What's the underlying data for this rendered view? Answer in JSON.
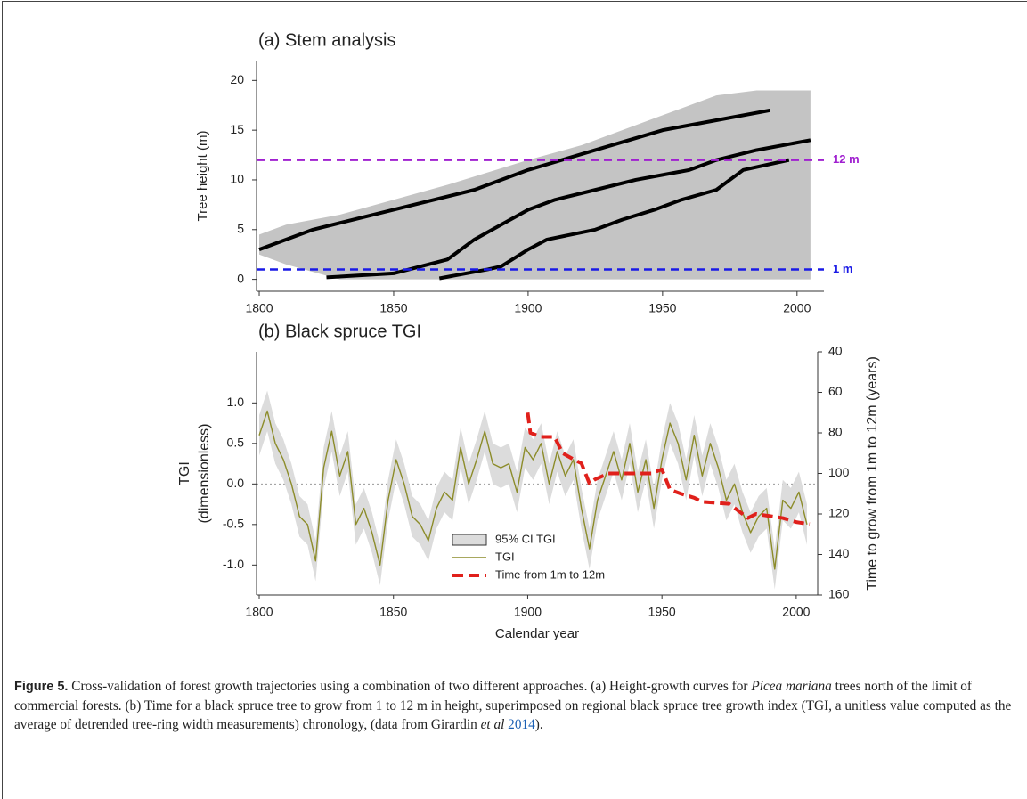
{
  "chart_data": [
    {
      "type": "line",
      "title": "(a) Stem analysis",
      "ylabel": "Tree height (m)",
      "xlim": [
        1799,
        2010
      ],
      "ylim": [
        -1.2,
        22
      ],
      "xticks": [
        1800,
        1850,
        1900,
        1950,
        2000
      ],
      "yticks": [
        0,
        5,
        10,
        15,
        20
      ],
      "band": {
        "color": "#c4c4c4",
        "x": [
          1800,
          1810,
          1830,
          1850,
          1870,
          1900,
          1920,
          1935,
          1950,
          1970,
          1985,
          2005
        ],
        "upper": [
          4.5,
          5.5,
          6.5,
          8,
          9.5,
          12,
          13.5,
          15,
          16.5,
          18.5,
          19,
          19
        ],
        "lower": [
          2.5,
          1.5,
          0,
          0,
          0,
          0,
          0,
          0,
          0,
          0,
          0,
          0
        ]
      },
      "series": [
        {
          "color": "#000000",
          "x": [
            1800,
            1820,
            1850,
            1880,
            1900,
            1925,
            1950,
            1970,
            1990
          ],
          "values": [
            3,
            5,
            7,
            9,
            11,
            13,
            15,
            16,
            17
          ]
        },
        {
          "color": "#000000",
          "x": [
            1825,
            1850,
            1870,
            1880,
            1890,
            1900,
            1910,
            1925,
            1940,
            1960,
            1970,
            1985,
            2005
          ],
          "values": [
            0.2,
            0.6,
            2,
            4,
            5.5,
            7,
            8,
            9,
            10,
            11,
            12,
            13,
            14
          ]
        },
        {
          "color": "#000000",
          "x": [
            1867,
            1885,
            1890,
            1900,
            1907,
            1925,
            1935,
            1947,
            1957,
            1970,
            1980,
            1997
          ],
          "values": [
            0.1,
            1,
            1.3,
            3,
            4,
            5,
            6,
            7,
            8,
            9,
            11,
            12
          ]
        }
      ],
      "reference_lines": [
        {
          "value": 12,
          "label": "12 m",
          "color": "#a020d0"
        },
        {
          "value": 1,
          "label": "1 m",
          "color": "#1a1ae6"
        }
      ]
    },
    {
      "type": "line",
      "title": "(b) Black spruce TGI",
      "xlabel": "Calendar year",
      "ylabel": [
        "TGI",
        "(dimensionless)"
      ],
      "y2label": "Time to grow from 1m to 12m (years)",
      "xlim": [
        1799,
        2008
      ],
      "ylim": [
        -1.37,
        1.63
      ],
      "y2lim": [
        160,
        40
      ],
      "xticks": [
        1800,
        1850,
        1900,
        1950,
        2000
      ],
      "yticks": [
        {
          "value": -1.0,
          "label": "-1.0"
        },
        -0.5,
        {
          "value": 0.0,
          "label": "0.0"
        },
        0.5,
        {
          "value": 1.0,
          "label": "1.0"
        }
      ],
      "y2ticks": [
        40,
        60,
        80,
        100,
        120,
        140,
        160
      ],
      "hline": 0,
      "legend": "lower center",
      "x": [
        1800,
        1803,
        1806,
        1809,
        1812,
        1815,
        1818,
        1821,
        1824,
        1827,
        1830,
        1833,
        1836,
        1839,
        1842,
        1845,
        1848,
        1851,
        1854,
        1857,
        1860,
        1863,
        1866,
        1869,
        1872,
        1875,
        1878,
        1881,
        1884,
        1887,
        1890,
        1893,
        1896,
        1899,
        1902,
        1905,
        1908,
        1911,
        1914,
        1917,
        1920,
        1923,
        1926,
        1929,
        1932,
        1935,
        1938,
        1941,
        1944,
        1947,
        1950,
        1953,
        1956,
        1959,
        1962,
        1965,
        1968,
        1971,
        1974,
        1977,
        1980,
        1983,
        1986,
        1989,
        1992,
        1995,
        1998,
        2001,
        2004
      ],
      "series": [
        {
          "name": "95% CI TGI",
          "style": "band",
          "color": "#dcdcdc",
          "lower": [
            0.35,
            0.65,
            0.25,
            0.05,
            -0.25,
            -0.65,
            -0.75,
            -1.2,
            -0.05,
            0.4,
            -0.15,
            0.15,
            -0.75,
            -0.55,
            -0.85,
            -1.25,
            -0.45,
            0.05,
            -0.25,
            -0.65,
            -0.75,
            -0.95,
            -0.55,
            -0.35,
            -0.45,
            0.2,
            -0.25,
            0.05,
            0.4,
            0,
            -0.05,
            0,
            -0.35,
            0.2,
            0.05,
            0.25,
            -0.25,
            0.15,
            -0.15,
            0.05,
            -0.55,
            -1.05,
            -0.45,
            -0.15,
            0.15,
            -0.2,
            0.25,
            -0.35,
            0.05,
            -0.55,
            0.05,
            0.5,
            0.25,
            -0.2,
            0.35,
            -0.15,
            0.25,
            -0.05,
            -0.45,
            -0.25,
            -0.6,
            -0.85,
            -0.65,
            -0.55,
            -1.3,
            -0.45,
            -0.55,
            -0.35,
            -0.75
          ],
          "upper": [
            0.85,
            1.15,
            0.75,
            0.55,
            0.25,
            -0.15,
            -0.25,
            -0.7,
            0.45,
            0.9,
            0.35,
            0.65,
            -0.25,
            -0.05,
            -0.35,
            -0.75,
            0.05,
            0.55,
            0.25,
            -0.15,
            -0.25,
            -0.45,
            -0.05,
            0.15,
            0.05,
            0.7,
            0.25,
            0.55,
            0.9,
            0.5,
            0.45,
            0.5,
            0.15,
            0.7,
            0.55,
            0.75,
            0.25,
            0.65,
            0.35,
            0.55,
            -0.05,
            -0.55,
            0.05,
            0.35,
            0.65,
            0.3,
            0.75,
            0.15,
            0.55,
            -0.05,
            0.55,
            1.0,
            0.75,
            0.3,
            0.85,
            0.35,
            0.75,
            0.45,
            0.05,
            0.25,
            -0.1,
            -0.35,
            -0.15,
            -0.05,
            -0.8,
            0.05,
            -0.05,
            0.15,
            -0.25
          ]
        },
        {
          "name": "TGI",
          "color": "#8c8c2a",
          "values": [
            0.6,
            0.9,
            0.5,
            0.3,
            0.0,
            -0.4,
            -0.5,
            -0.95,
            0.2,
            0.65,
            0.1,
            0.4,
            -0.5,
            -0.3,
            -0.6,
            -1.0,
            -0.2,
            0.3,
            0.0,
            -0.4,
            -0.5,
            -0.7,
            -0.3,
            -0.1,
            -0.2,
            0.45,
            0.0,
            0.3,
            0.65,
            0.25,
            0.2,
            0.25,
            -0.1,
            0.45,
            0.3,
            0.5,
            0.0,
            0.4,
            0.1,
            0.3,
            -0.3,
            -0.8,
            -0.2,
            0.1,
            0.4,
            0.05,
            0.5,
            -0.1,
            0.3,
            -0.3,
            0.3,
            0.75,
            0.5,
            0.05,
            0.6,
            0.1,
            0.5,
            0.2,
            -0.2,
            0.0,
            -0.35,
            -0.6,
            -0.4,
            -0.3,
            -1.05,
            -0.2,
            -0.3,
            -0.1,
            -0.5
          ]
        },
        {
          "name": "Time from 1m to 12m",
          "color": "#e0201b",
          "dashed": true,
          "axis": "y2",
          "x": [
            1900,
            1901,
            1905,
            1910,
            1913,
            1917,
            1920,
            1923,
            1925,
            1930,
            1940,
            1946,
            1950,
            1953,
            1957,
            1962,
            1965,
            1975,
            1978,
            1982,
            1985,
            1990,
            1995,
            2000,
            2005
          ],
          "values": [
            70,
            80,
            82,
            82,
            90,
            93,
            95,
            105,
            103,
            100,
            100,
            100,
            98,
            108,
            110,
            112,
            114,
            115,
            118,
            122,
            120,
            121,
            122,
            124,
            125
          ]
        }
      ]
    }
  ],
  "caption": {
    "label": "Figure 5.",
    "text1": "Cross-validation of forest growth trajectories using a combination of two different approaches. (a) Height-growth curves for",
    "italic1": "Picea mariana",
    "text2": "trees north of the limit of commercial forests. (b) Time for a black spruce tree to grow from 1 to 12 m in height, superimposed on regional black spruce tree growth index (TGI, a unitless value computed as the average of detrended tree-ring width measurements) chronology, (data from Girardin",
    "italic2": "et al",
    "link": "2014",
    "text3": ")."
  }
}
